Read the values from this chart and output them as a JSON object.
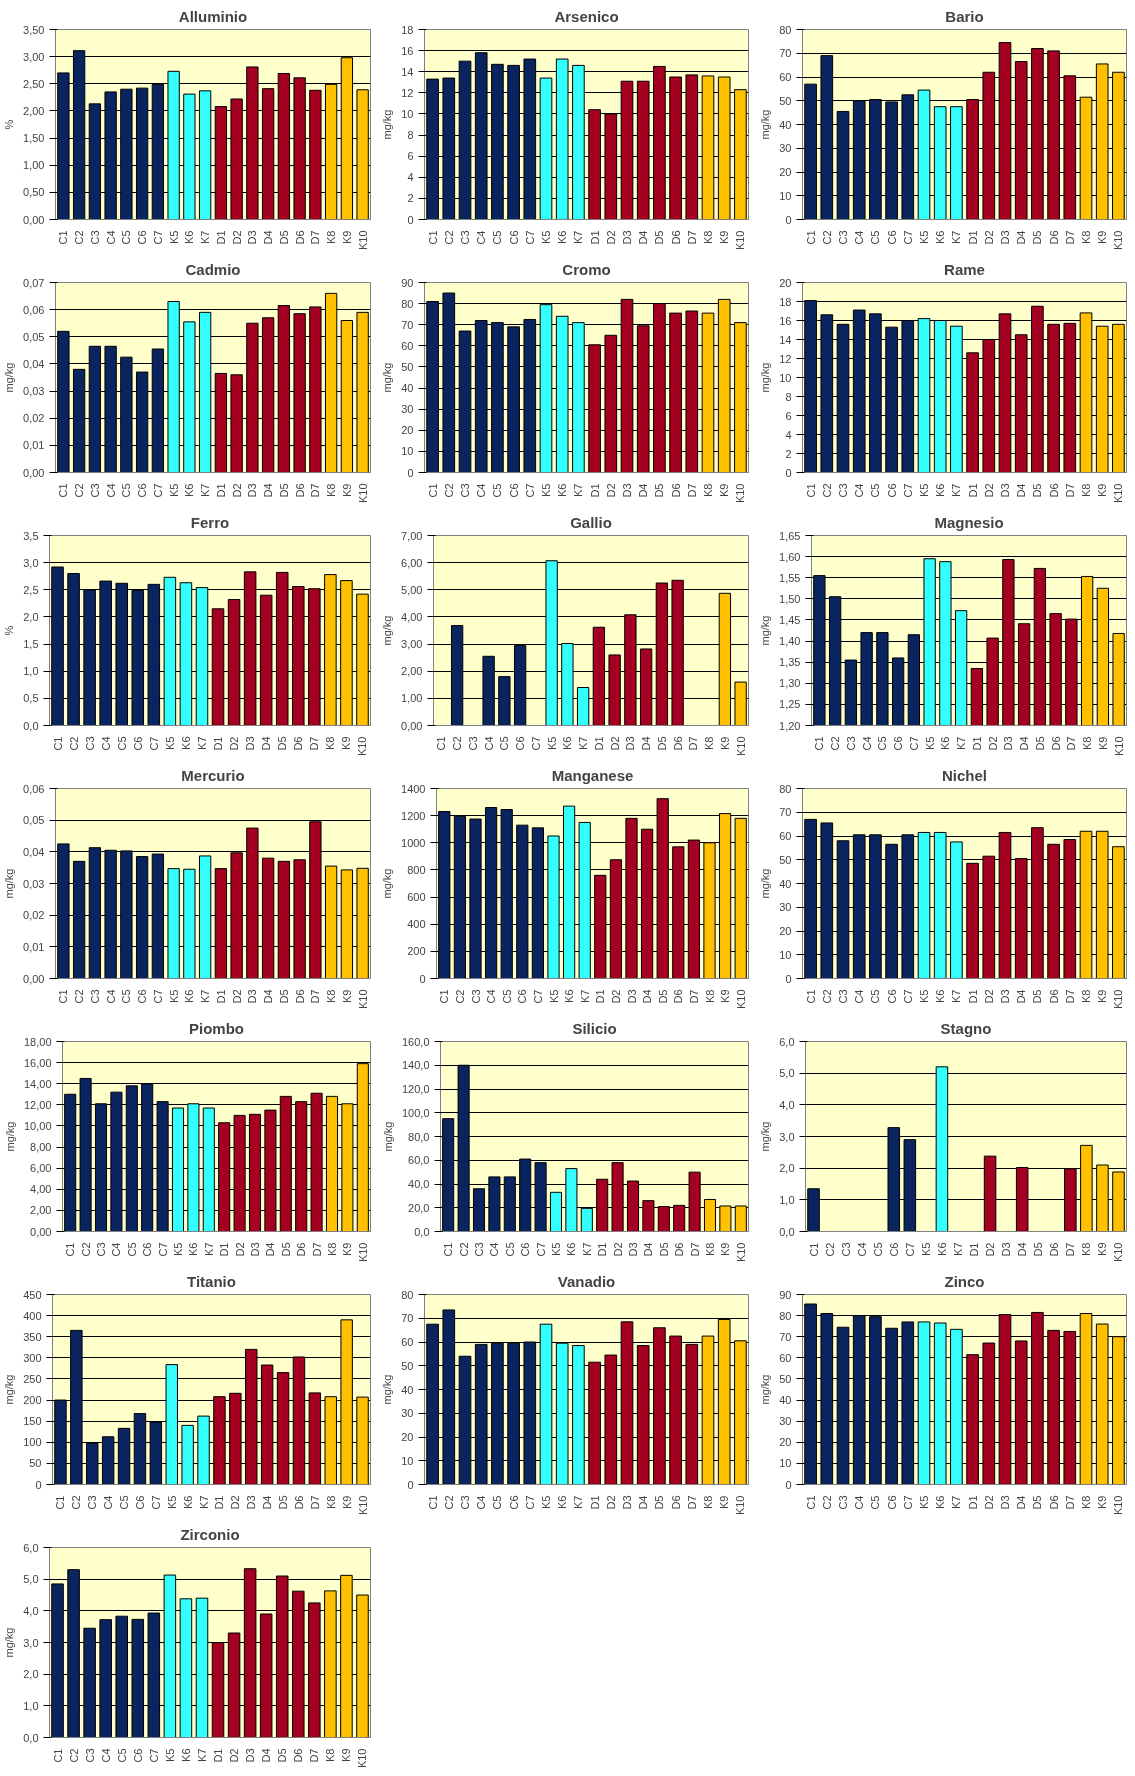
{
  "chart_data": [
    {
      "type": "bar",
      "title": "Alluminio",
      "ylabel": "%",
      "categories": [
        "C1",
        "C2",
        "C3",
        "C4",
        "C5",
        "C6",
        "C7",
        "K5",
        "K6",
        "K7",
        "D1",
        "D2",
        "D3",
        "D4",
        "D5",
        "D6",
        "D7",
        "K8",
        "K9",
        "K10"
      ],
      "values": [
        2.7,
        3.11,
        2.13,
        2.35,
        2.4,
        2.42,
        2.49,
        2.73,
        2.31,
        2.37,
        2.08,
        2.22,
        2.81,
        2.41,
        2.69,
        2.61,
        2.38,
        2.49,
        2.98,
        2.39
      ],
      "colors": [
        "#0a2460",
        "#0a2460",
        "#0a2460",
        "#0a2460",
        "#0a2460",
        "#0a2460",
        "#0a2460",
        "#33ffff",
        "#33ffff",
        "#33ffff",
        "#a50021",
        "#a50021",
        "#a50021",
        "#a50021",
        "#a50021",
        "#a50021",
        "#a50021",
        "#ffc000",
        "#ffc000",
        "#ffc000"
      ],
      "ylim": [
        0,
        3.5
      ],
      "yticks": [
        {
          "value": 0,
          "label": "0,00"
        },
        {
          "value": 0.5,
          "label": "0,50"
        },
        {
          "value": 1,
          "label": "1,00"
        },
        {
          "value": 1.5,
          "label": "1,50"
        },
        {
          "value": 2,
          "label": "2,00"
        },
        {
          "value": 2.5,
          "label": "2,50"
        },
        {
          "value": 3,
          "label": "3,00"
        },
        {
          "value": 3.5,
          "label": "3,50"
        }
      ],
      "grid": "y"
    },
    {
      "type": "bar",
      "title": "Arsenico",
      "ylabel": "mg/kg",
      "categories": [
        "C1",
        "C2",
        "C3",
        "C4",
        "C5",
        "C6",
        "C7",
        "K5",
        "K6",
        "K7",
        "D1",
        "D2",
        "D3",
        "D4",
        "D5",
        "D6",
        "D7",
        "K8",
        "K9",
        "K10"
      ],
      "values": [
        13.3,
        13.4,
        15.0,
        15.8,
        14.7,
        14.6,
        15.2,
        13.4,
        15.2,
        14.6,
        10.4,
        10.0,
        13.1,
        13.1,
        14.5,
        13.5,
        13.7,
        13.6,
        13.5,
        12.3
      ],
      "colors": [
        "#0a2460",
        "#0a2460",
        "#0a2460",
        "#0a2460",
        "#0a2460",
        "#0a2460",
        "#0a2460",
        "#33ffff",
        "#33ffff",
        "#33ffff",
        "#a50021",
        "#a50021",
        "#a50021",
        "#a50021",
        "#a50021",
        "#a50021",
        "#a50021",
        "#ffc000",
        "#ffc000",
        "#ffc000"
      ],
      "ylim": [
        0,
        18
      ],
      "yticks": [
        0,
        2,
        4,
        6,
        8,
        10,
        12,
        14,
        16,
        18
      ],
      "grid": "y"
    },
    {
      "type": "bar",
      "title": "Bario",
      "ylabel": "mg/kg",
      "categories": [
        "C1",
        "C2",
        "C3",
        "C4",
        "C5",
        "C6",
        "C7",
        "K5",
        "K6",
        "K7",
        "D1",
        "D2",
        "D3",
        "D4",
        "D5",
        "D6",
        "D7",
        "K8",
        "K9",
        "K10"
      ],
      "values": [
        57,
        69,
        45.5,
        50,
        50.5,
        49.5,
        52.5,
        54.5,
        47.5,
        47.5,
        50.5,
        62,
        74.5,
        66.5,
        72,
        71,
        60.5,
        51.5,
        65.5,
        62
      ],
      "colors": [
        "#0a2460",
        "#0a2460",
        "#0a2460",
        "#0a2460",
        "#0a2460",
        "#0a2460",
        "#0a2460",
        "#33ffff",
        "#33ffff",
        "#33ffff",
        "#a50021",
        "#a50021",
        "#a50021",
        "#a50021",
        "#a50021",
        "#a50021",
        "#a50021",
        "#ffc000",
        "#ffc000",
        "#ffc000"
      ],
      "ylim": [
        0,
        80
      ],
      "yticks": [
        0,
        10,
        20,
        30,
        40,
        50,
        60,
        70,
        80
      ],
      "grid": "y"
    },
    {
      "type": "bar",
      "title": "Cadmio",
      "ylabel": "mg/kg",
      "categories": [
        "C1",
        "C2",
        "C3",
        "C4",
        "C5",
        "C6",
        "C7",
        "K5",
        "K6",
        "K7",
        "D1",
        "D2",
        "D3",
        "D4",
        "D5",
        "D6",
        "D7",
        "K8",
        "K9",
        "K10"
      ],
      "values": [
        0.052,
        0.038,
        0.0465,
        0.0465,
        0.0425,
        0.037,
        0.0455,
        0.063,
        0.0555,
        0.059,
        0.0365,
        0.036,
        0.055,
        0.057,
        0.0615,
        0.0585,
        0.061,
        0.066,
        0.056,
        0.059
      ],
      "colors": [
        "#0a2460",
        "#0a2460",
        "#0a2460",
        "#0a2460",
        "#0a2460",
        "#0a2460",
        "#0a2460",
        "#33ffff",
        "#33ffff",
        "#33ffff",
        "#a50021",
        "#a50021",
        "#a50021",
        "#a50021",
        "#a50021",
        "#a50021",
        "#a50021",
        "#ffc000",
        "#ffc000",
        "#ffc000"
      ],
      "ylim": [
        0,
        0.07
      ],
      "yticks": [
        {
          "value": 0,
          "label": "0,00"
        },
        {
          "value": 0.01,
          "label": "0,01"
        },
        {
          "value": 0.02,
          "label": "0,02"
        },
        {
          "value": 0.03,
          "label": "0,03"
        },
        {
          "value": 0.04,
          "label": "0,04"
        },
        {
          "value": 0.05,
          "label": "0,05"
        },
        {
          "value": 0.06,
          "label": "0,06"
        },
        {
          "value": 0.07,
          "label": "0,07"
        }
      ],
      "grid": "y"
    },
    {
      "type": "bar",
      "title": "Cromo",
      "ylabel": "mg/kg",
      "categories": [
        "C1",
        "C2",
        "C3",
        "C4",
        "C5",
        "C6",
        "C7",
        "K5",
        "K6",
        "K7",
        "D1",
        "D2",
        "D3",
        "D4",
        "D5",
        "D6",
        "D7",
        "K8",
        "K9",
        "K10"
      ],
      "values": [
        81,
        85,
        67,
        72,
        71,
        69,
        72.5,
        79.5,
        74,
        71,
        60.5,
        65,
        82,
        69.5,
        80,
        75.5,
        76.5,
        75.5,
        82,
        71
      ],
      "colors": [
        "#0a2460",
        "#0a2460",
        "#0a2460",
        "#0a2460",
        "#0a2460",
        "#0a2460",
        "#0a2460",
        "#33ffff",
        "#33ffff",
        "#33ffff",
        "#a50021",
        "#a50021",
        "#a50021",
        "#a50021",
        "#a50021",
        "#a50021",
        "#a50021",
        "#ffc000",
        "#ffc000",
        "#ffc000"
      ],
      "ylim": [
        0,
        90
      ],
      "yticks": [
        0,
        10,
        20,
        30,
        40,
        50,
        60,
        70,
        80,
        90
      ],
      "grid": "y"
    },
    {
      "type": "bar",
      "title": "Rame",
      "ylabel": "mg/kg",
      "categories": [
        "C1",
        "C2",
        "C3",
        "C4",
        "C5",
        "C6",
        "C7",
        "K5",
        "K6",
        "K7",
        "D1",
        "D2",
        "D3",
        "D4",
        "D5",
        "D6",
        "D7",
        "K8",
        "K9",
        "K10"
      ],
      "values": [
        18.1,
        16.6,
        15.6,
        17.1,
        16.7,
        15.3,
        16.0,
        16.2,
        16.0,
        15.4,
        12.6,
        14.0,
        16.7,
        14.5,
        17.5,
        15.6,
        15.7,
        16.8,
        15.4,
        15.6
      ],
      "colors": [
        "#0a2460",
        "#0a2460",
        "#0a2460",
        "#0a2460",
        "#0a2460",
        "#0a2460",
        "#0a2460",
        "#33ffff",
        "#33ffff",
        "#33ffff",
        "#a50021",
        "#a50021",
        "#a50021",
        "#a50021",
        "#a50021",
        "#a50021",
        "#a50021",
        "#ffc000",
        "#ffc000",
        "#ffc000"
      ],
      "ylim": [
        0,
        20
      ],
      "yticks": [
        0,
        2,
        4,
        6,
        8,
        10,
        12,
        14,
        16,
        18,
        20
      ],
      "grid": "y"
    },
    {
      "type": "bar",
      "title": "Ferro",
      "ylabel": "%",
      "categories": [
        "C1",
        "C2",
        "C3",
        "C4",
        "C5",
        "C6",
        "C7",
        "K5",
        "K6",
        "K7",
        "D1",
        "D2",
        "D3",
        "D4",
        "D5",
        "D6",
        "D7",
        "K8",
        "K9",
        "K10"
      ],
      "values": [
        2.92,
        2.8,
        2.5,
        2.66,
        2.62,
        2.49,
        2.6,
        2.73,
        2.63,
        2.54,
        2.15,
        2.32,
        2.83,
        2.4,
        2.82,
        2.56,
        2.52,
        2.78,
        2.67,
        2.42
      ],
      "colors": [
        "#0a2460",
        "#0a2460",
        "#0a2460",
        "#0a2460",
        "#0a2460",
        "#0a2460",
        "#0a2460",
        "#33ffff",
        "#33ffff",
        "#33ffff",
        "#a50021",
        "#a50021",
        "#a50021",
        "#a50021",
        "#a50021",
        "#a50021",
        "#a50021",
        "#ffc000",
        "#ffc000",
        "#ffc000"
      ],
      "ylim": [
        0,
        3.5
      ],
      "yticks": [
        {
          "value": 0,
          "label": "0,0"
        },
        {
          "value": 0.5,
          "label": "0,5"
        },
        {
          "value": 1,
          "label": "1,0"
        },
        {
          "value": 1.5,
          "label": "1,5"
        },
        {
          "value": 2,
          "label": "2,0"
        },
        {
          "value": 2.5,
          "label": "2,5"
        },
        {
          "value": 3,
          "label": "3,0"
        },
        {
          "value": 3.5,
          "label": "3,5"
        }
      ],
      "grid": "y"
    },
    {
      "type": "bar",
      "title": "Gallio",
      "ylabel": "mg/kg",
      "categories": [
        "C1",
        "C2",
        "C3",
        "C4",
        "C5",
        "C6",
        "C7",
        "K5",
        "K6",
        "K7",
        "D1",
        "D2",
        "D3",
        "D4",
        "D5",
        "D6",
        "D7",
        "K8",
        "K9",
        "K10"
      ],
      "values": [
        null,
        3.68,
        null,
        2.55,
        1.8,
        2.95,
        null,
        6.07,
        3.02,
        1.4,
        3.62,
        2.6,
        4.08,
        2.82,
        5.25,
        5.35,
        null,
        null,
        4.87,
        1.6
      ],
      "colors": [
        "#0a2460",
        "#0a2460",
        "#0a2460",
        "#0a2460",
        "#0a2460",
        "#0a2460",
        "#0a2460",
        "#33ffff",
        "#33ffff",
        "#33ffff",
        "#a50021",
        "#a50021",
        "#a50021",
        "#a50021",
        "#a50021",
        "#a50021",
        "#a50021",
        "#ffc000",
        "#ffc000",
        "#ffc000"
      ],
      "ylim": [
        0,
        7
      ],
      "yticks": [
        {
          "value": 0,
          "label": "0,00"
        },
        {
          "value": 1,
          "label": "1,00"
        },
        {
          "value": 2,
          "label": "2,00"
        },
        {
          "value": 3,
          "label": "3,00"
        },
        {
          "value": 4,
          "label": "4,00"
        },
        {
          "value": 5,
          "label": "5,00"
        },
        {
          "value": 6,
          "label": "6,00"
        },
        {
          "value": 7,
          "label": "7,00"
        }
      ],
      "grid": "y"
    },
    {
      "type": "bar",
      "title": "Magnesio",
      "ylabel": "mg/kg",
      "categories": [
        "C1",
        "C2",
        "C3",
        "C4",
        "C5",
        "C6",
        "C7",
        "K5",
        "K6",
        "K7",
        "D1",
        "D2",
        "D3",
        "D4",
        "D5",
        "D6",
        "D7",
        "K8",
        "K9",
        "K10"
      ],
      "values": [
        1.555,
        1.505,
        1.355,
        1.42,
        1.42,
        1.36,
        1.415,
        1.595,
        1.588,
        1.472,
        1.335,
        1.407,
        1.593,
        1.441,
        1.572,
        1.465,
        1.452,
        1.553,
        1.525,
        1.418
      ],
      "colors": [
        "#0a2460",
        "#0a2460",
        "#0a2460",
        "#0a2460",
        "#0a2460",
        "#0a2460",
        "#0a2460",
        "#33ffff",
        "#33ffff",
        "#33ffff",
        "#a50021",
        "#a50021",
        "#a50021",
        "#a50021",
        "#a50021",
        "#a50021",
        "#a50021",
        "#ffc000",
        "#ffc000",
        "#ffc000"
      ],
      "ylim": [
        1.2,
        1.65
      ],
      "yticks": [
        {
          "value": 1.2,
          "label": "1,20"
        },
        {
          "value": 1.25,
          "label": "1,25"
        },
        {
          "value": 1.3,
          "label": "1,30"
        },
        {
          "value": 1.35,
          "label": "1,35"
        },
        {
          "value": 1.4,
          "label": "1,40"
        },
        {
          "value": 1.45,
          "label": "1,45"
        },
        {
          "value": 1.5,
          "label": "1,50"
        },
        {
          "value": 1.55,
          "label": "1,55"
        },
        {
          "value": 1.6,
          "label": "1,60"
        },
        {
          "value": 1.65,
          "label": "1,65"
        }
      ],
      "grid": "y"
    },
    {
      "type": "bar",
      "title": "Mercurio",
      "ylabel": "mg/kg",
      "categories": [
        "C1",
        "C2",
        "C3",
        "C4",
        "C5",
        "C6",
        "C7",
        "K5",
        "K6",
        "K7",
        "D1",
        "D2",
        "D3",
        "D4",
        "D5",
        "D6",
        "D7",
        "K8",
        "K9",
        "K10"
      ],
      "values": [
        0.0425,
        0.037,
        0.0413,
        0.0405,
        0.0403,
        0.0385,
        0.0393,
        0.0347,
        0.0345,
        0.0387,
        0.0347,
        0.0397,
        0.0475,
        0.038,
        0.037,
        0.0375,
        0.0495,
        0.0355,
        0.0343,
        0.0348
      ],
      "colors": [
        "#0a2460",
        "#0a2460",
        "#0a2460",
        "#0a2460",
        "#0a2460",
        "#0a2460",
        "#0a2460",
        "#33ffff",
        "#33ffff",
        "#33ffff",
        "#a50021",
        "#a50021",
        "#a50021",
        "#a50021",
        "#a50021",
        "#a50021",
        "#a50021",
        "#ffc000",
        "#ffc000",
        "#ffc000"
      ],
      "ylim": [
        0,
        0.06
      ],
      "yticks": [
        {
          "value": 0,
          "label": "0,00"
        },
        {
          "value": 0.01,
          "label": "0,01"
        },
        {
          "value": 0.02,
          "label": "0,02"
        },
        {
          "value": 0.03,
          "label": "0,03"
        },
        {
          "value": 0.04,
          "label": "0,04"
        },
        {
          "value": 0.05,
          "label": "0,05"
        },
        {
          "value": 0.06,
          "label": "0,06"
        }
      ],
      "grid": "y"
    },
    {
      "type": "bar",
      "title": "Manganese",
      "ylabel": "mg/kg",
      "categories": [
        "C1",
        "C2",
        "C3",
        "C4",
        "C5",
        "C6",
        "C7",
        "K5",
        "K6",
        "K7",
        "D1",
        "D2",
        "D3",
        "D4",
        "D5",
        "D6",
        "D7",
        "K8",
        "K9",
        "K10"
      ],
      "values": [
        1230,
        1195,
        1175,
        1260,
        1245,
        1130,
        1110,
        1050,
        1270,
        1150,
        760,
        875,
        1180,
        1100,
        1325,
        970,
        1020,
        1000,
        1215,
        1180
      ],
      "colors": [
        "#0a2460",
        "#0a2460",
        "#0a2460",
        "#0a2460",
        "#0a2460",
        "#0a2460",
        "#0a2460",
        "#33ffff",
        "#33ffff",
        "#33ffff",
        "#a50021",
        "#a50021",
        "#a50021",
        "#a50021",
        "#a50021",
        "#a50021",
        "#a50021",
        "#ffc000",
        "#ffc000",
        "#ffc000"
      ],
      "ylim": [
        0,
        1400
      ],
      "yticks": [
        0,
        200,
        400,
        600,
        800,
        1000,
        1200,
        1400
      ],
      "grid": "y"
    },
    {
      "type": "bar",
      "title": "Nichel",
      "ylabel": "mg/kg",
      "categories": [
        "C1",
        "C2",
        "C3",
        "C4",
        "C5",
        "C6",
        "C7",
        "K5",
        "K6",
        "K7",
        "D1",
        "D2",
        "D3",
        "D4",
        "D5",
        "D6",
        "D7",
        "K8",
        "K9",
        "K10"
      ],
      "values": [
        67,
        65.5,
        58,
        60.5,
        60.5,
        56.5,
        60.5,
        61.5,
        61.5,
        57.5,
        48.5,
        51.5,
        61.5,
        50.5,
        63.5,
        56.5,
        58.5,
        62,
        62,
        55.5
      ],
      "colors": [
        "#0a2460",
        "#0a2460",
        "#0a2460",
        "#0a2460",
        "#0a2460",
        "#0a2460",
        "#0a2460",
        "#33ffff",
        "#33ffff",
        "#33ffff",
        "#a50021",
        "#a50021",
        "#a50021",
        "#a50021",
        "#a50021",
        "#a50021",
        "#a50021",
        "#ffc000",
        "#ffc000",
        "#ffc000"
      ],
      "ylim": [
        0,
        80
      ],
      "yticks": [
        0,
        10,
        20,
        30,
        40,
        50,
        60,
        70,
        80
      ],
      "grid": "y"
    },
    {
      "type": "bar",
      "title": "Piombo",
      "ylabel": "mg/kg",
      "categories": [
        "C1",
        "C2",
        "C3",
        "C4",
        "C5",
        "C6",
        "C7",
        "K5",
        "K6",
        "K7",
        "D1",
        "D2",
        "D3",
        "D4",
        "D5",
        "D6",
        "D7",
        "K8",
        "K9",
        "K10"
      ],
      "values": [
        13.0,
        14.5,
        12.1,
        13.2,
        13.8,
        14.0,
        12.3,
        11.7,
        12.1,
        11.7,
        10.3,
        11.0,
        11.1,
        11.5,
        12.8,
        12.3,
        13.1,
        12.8,
        12.1,
        15.9
      ],
      "colors": [
        "#0a2460",
        "#0a2460",
        "#0a2460",
        "#0a2460",
        "#0a2460",
        "#0a2460",
        "#0a2460",
        "#33ffff",
        "#33ffff",
        "#33ffff",
        "#a50021",
        "#a50021",
        "#a50021",
        "#a50021",
        "#a50021",
        "#a50021",
        "#a50021",
        "#ffc000",
        "#ffc000",
        "#ffc000"
      ],
      "ylim": [
        0,
        18
      ],
      "yticks": [
        {
          "value": 0,
          "label": "0,00"
        },
        {
          "value": 2,
          "label": "2,00"
        },
        {
          "value": 4,
          "label": "4,00"
        },
        {
          "value": 6,
          "label": "6,00"
        },
        {
          "value": 8,
          "label": "8,00"
        },
        {
          "value": 10,
          "label": "10,00"
        },
        {
          "value": 12,
          "label": "12,00"
        },
        {
          "value": 14,
          "label": "14,00"
        },
        {
          "value": 16,
          "label": "16,00"
        },
        {
          "value": 18,
          "label": "18,00"
        }
      ],
      "grid": "y"
    },
    {
      "type": "bar",
      "title": "Silicio",
      "ylabel": "mg/kg",
      "categories": [
        "C1",
        "C2",
        "C3",
        "C4",
        "C5",
        "C6",
        "C7",
        "K5",
        "K6",
        "K7",
        "D1",
        "D2",
        "D3",
        "D4",
        "D5",
        "D6",
        "D7",
        "K8",
        "K9",
        "K10"
      ],
      "values": [
        95,
        140,
        36,
        46,
        46,
        61,
        58,
        33,
        53,
        19.5,
        44,
        58,
        42.5,
        26,
        21,
        22,
        50,
        27,
        21.5,
        21.5
      ],
      "colors": [
        "#0a2460",
        "#0a2460",
        "#0a2460",
        "#0a2460",
        "#0a2460",
        "#0a2460",
        "#0a2460",
        "#33ffff",
        "#33ffff",
        "#33ffff",
        "#a50021",
        "#a50021",
        "#a50021",
        "#a50021",
        "#a50021",
        "#a50021",
        "#a50021",
        "#ffc000",
        "#ffc000",
        "#ffc000"
      ],
      "ylim": [
        0,
        160
      ],
      "yticks": [
        {
          "value": 0,
          "label": "0,0"
        },
        {
          "value": 20,
          "label": "20,0"
        },
        {
          "value": 40,
          "label": "40,0"
        },
        {
          "value": 60,
          "label": "60,0"
        },
        {
          "value": 80,
          "label": "80,0"
        },
        {
          "value": 100,
          "label": "100,0"
        },
        {
          "value": 120,
          "label": "120,0"
        },
        {
          "value": 140,
          "label": "140,0"
        },
        {
          "value": 160,
          "label": "160,0"
        }
      ],
      "grid": "y"
    },
    {
      "type": "bar",
      "title": "Stagno",
      "ylabel": "mg/kg",
      "categories": [
        "C1",
        "C2",
        "C3",
        "C4",
        "C5",
        "C6",
        "C7",
        "K5",
        "K6",
        "K7",
        "D1",
        "D2",
        "D3",
        "D4",
        "D5",
        "D6",
        "D7",
        "K8",
        "K9",
        "K10"
      ],
      "values": [
        1.35,
        null,
        null,
        null,
        null,
        3.28,
        2.9,
        null,
        5.2,
        null,
        null,
        2.38,
        null,
        2.02,
        null,
        null,
        1.98,
        2.72,
        2.1,
        1.88
      ],
      "colors": [
        "#0a2460",
        "#0a2460",
        "#0a2460",
        "#0a2460",
        "#0a2460",
        "#0a2460",
        "#0a2460",
        "#33ffff",
        "#33ffff",
        "#33ffff",
        "#a50021",
        "#a50021",
        "#a50021",
        "#a50021",
        "#a50021",
        "#a50021",
        "#a50021",
        "#ffc000",
        "#ffc000",
        "#ffc000"
      ],
      "ylim": [
        0,
        6
      ],
      "yticks": [
        {
          "value": 0,
          "label": "0,0"
        },
        {
          "value": 1,
          "label": "1,0"
        },
        {
          "value": 2,
          "label": "2,0"
        },
        {
          "value": 3,
          "label": "3,0"
        },
        {
          "value": 4,
          "label": "4,0"
        },
        {
          "value": 5,
          "label": "5,0"
        },
        {
          "value": 6,
          "label": "6,0"
        }
      ],
      "grid": "y"
    },
    {
      "type": "bar",
      "title": "Titanio",
      "ylabel": "mg/kg",
      "categories": [
        "C1",
        "C2",
        "C3",
        "C4",
        "C5",
        "C6",
        "C7",
        "K5",
        "K6",
        "K7",
        "D1",
        "D2",
        "D3",
        "D4",
        "D5",
        "D6",
        "D7",
        "K8",
        "K9",
        "K10"
      ],
      "values": [
        200,
        365,
        98,
        113,
        133,
        168,
        148,
        284,
        140,
        162,
        208,
        216,
        320,
        283,
        265,
        302,
        217,
        208,
        390,
        207
      ],
      "colors": [
        "#0a2460",
        "#0a2460",
        "#0a2460",
        "#0a2460",
        "#0a2460",
        "#0a2460",
        "#0a2460",
        "#33ffff",
        "#33ffff",
        "#33ffff",
        "#a50021",
        "#a50021",
        "#a50021",
        "#a50021",
        "#a50021",
        "#a50021",
        "#a50021",
        "#ffc000",
        "#ffc000",
        "#ffc000"
      ],
      "ylim": [
        0,
        450
      ],
      "yticks": [
        0,
        50,
        100,
        150,
        200,
        250,
        300,
        350,
        400,
        450
      ],
      "grid": "y"
    },
    {
      "type": "bar",
      "title": "Vanadio",
      "ylabel": "mg/kg",
      "categories": [
        "C1",
        "C2",
        "C3",
        "C4",
        "C5",
        "C6",
        "C7",
        "K5",
        "K6",
        "K7",
        "D1",
        "D2",
        "D3",
        "D4",
        "D5",
        "D6",
        "D7",
        "K8",
        "K9",
        "K10"
      ],
      "values": [
        67.5,
        73.5,
        54,
        59,
        59.5,
        59.5,
        60,
        67.5,
        59.5,
        58.5,
        51.5,
        54.5,
        68.5,
        58.5,
        66,
        62.5,
        59,
        62.5,
        69.5,
        60.5
      ],
      "colors": [
        "#0a2460",
        "#0a2460",
        "#0a2460",
        "#0a2460",
        "#0a2460",
        "#0a2460",
        "#0a2460",
        "#33ffff",
        "#33ffff",
        "#33ffff",
        "#a50021",
        "#a50021",
        "#a50021",
        "#a50021",
        "#a50021",
        "#a50021",
        "#a50021",
        "#ffc000",
        "#ffc000",
        "#ffc000"
      ],
      "ylim": [
        0,
        80
      ],
      "yticks": [
        0,
        10,
        20,
        30,
        40,
        50,
        60,
        70,
        80
      ],
      "grid": "y"
    },
    {
      "type": "bar",
      "title": "Zinco",
      "ylabel": "mg/kg",
      "categories": [
        "C1",
        "C2",
        "C3",
        "C4",
        "C5",
        "C6",
        "C7",
        "K5",
        "K6",
        "K7",
        "D1",
        "D2",
        "D3",
        "D4",
        "D5",
        "D6",
        "D7",
        "K8",
        "K9",
        "K10"
      ],
      "values": [
        85.5,
        81,
        74.5,
        80,
        79.5,
        74,
        77,
        77,
        76.5,
        73.5,
        61.5,
        67,
        80.5,
        68,
        81.5,
        73,
        72.5,
        81,
        76,
        70
      ],
      "colors": [
        "#0a2460",
        "#0a2460",
        "#0a2460",
        "#0a2460",
        "#0a2460",
        "#0a2460",
        "#0a2460",
        "#33ffff",
        "#33ffff",
        "#33ffff",
        "#a50021",
        "#a50021",
        "#a50021",
        "#a50021",
        "#a50021",
        "#a50021",
        "#a50021",
        "#ffc000",
        "#ffc000",
        "#ffc000"
      ],
      "ylim": [
        0,
        90
      ],
      "yticks": [
        0,
        10,
        20,
        30,
        40,
        50,
        60,
        70,
        80,
        90
      ],
      "grid": "y"
    },
    {
      "type": "bar",
      "title": "Zirconio",
      "ylabel": "mg/kg",
      "categories": [
        "C1",
        "C2",
        "C3",
        "C4",
        "C5",
        "C6",
        "C7",
        "K5",
        "K6",
        "K7",
        "D1",
        "D2",
        "D3",
        "D4",
        "D5",
        "D6",
        "D7",
        "K8",
        "K9",
        "K10"
      ],
      "values": [
        4.85,
        5.3,
        3.45,
        3.72,
        3.83,
        3.73,
        3.93,
        5.13,
        4.38,
        4.4,
        3.0,
        3.3,
        5.33,
        3.9,
        5.1,
        4.62,
        4.25,
        4.63,
        5.12,
        4.5
      ],
      "colors": [
        "#0a2460",
        "#0a2460",
        "#0a2460",
        "#0a2460",
        "#0a2460",
        "#0a2460",
        "#0a2460",
        "#33ffff",
        "#33ffff",
        "#33ffff",
        "#a50021",
        "#a50021",
        "#a50021",
        "#a50021",
        "#a50021",
        "#a50021",
        "#a50021",
        "#ffc000",
        "#ffc000",
        "#ffc000"
      ],
      "ylim": [
        0,
        6
      ],
      "yticks": [
        {
          "value": 0,
          "label": "0,0"
        },
        {
          "value": 1,
          "label": "1,0"
        },
        {
          "value": 2,
          "label": "2,0"
        },
        {
          "value": 3,
          "label": "3,0"
        },
        {
          "value": 4,
          "label": "4,0"
        },
        {
          "value": 5,
          "label": "5,0"
        },
        {
          "value": 6,
          "label": "6,0"
        }
      ],
      "grid": "y"
    }
  ]
}
